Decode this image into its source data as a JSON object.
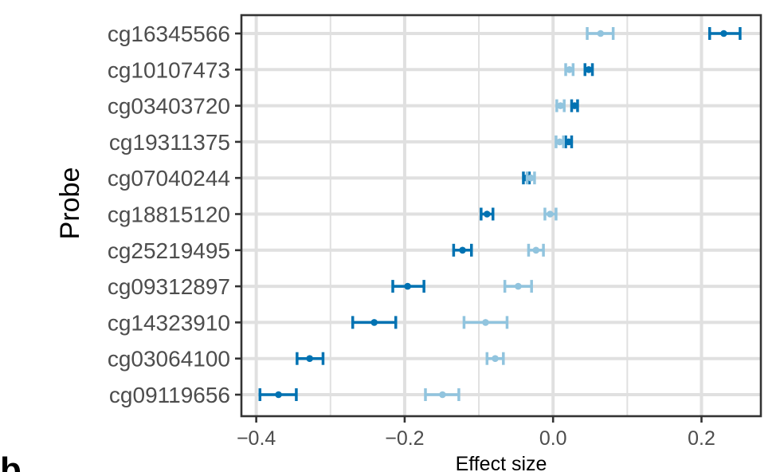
{
  "chart_data": {
    "type": "errorbar",
    "xlabel": "Effect size",
    "ylabel": "Probe",
    "xlim": [
      -0.42,
      0.28
    ],
    "x_ticks": [
      -0.4,
      -0.2,
      0.0,
      0.2
    ],
    "x_tick_labels": [
      "−0.4",
      "−0.2",
      "0.0",
      "0.2"
    ],
    "grid": true,
    "panel_letter": "b",
    "colors": {
      "dark": "#0072b2",
      "light": "#91c4de",
      "grid": "#e0e0e0",
      "frame": "#333333"
    },
    "categories": [
      "cg16345566",
      "cg10107473",
      "cg03403720",
      "cg19311375",
      "cg07040244",
      "cg18815120",
      "cg25219495",
      "cg09312897",
      "cg14323910",
      "cg03064100",
      "cg09119656"
    ],
    "series": [
      {
        "name": "dark",
        "color": "#0072b2",
        "values": [
          0.23,
          0.048,
          0.029,
          0.021,
          -0.036,
          -0.089,
          -0.122,
          -0.196,
          -0.241,
          -0.328,
          -0.37
        ],
        "lower": [
          0.211,
          0.043,
          0.025,
          0.017,
          -0.04,
          -0.097,
          -0.134,
          -0.216,
          -0.27,
          -0.345,
          -0.395
        ],
        "upper": [
          0.252,
          0.053,
          0.033,
          0.025,
          -0.032,
          -0.081,
          -0.11,
          -0.174,
          -0.212,
          -0.31,
          -0.346
        ]
      },
      {
        "name": "light",
        "color": "#91c4de",
        "values": [
          0.064,
          0.022,
          0.01,
          0.009,
          -0.03,
          -0.004,
          -0.023,
          -0.047,
          -0.091,
          -0.078,
          -0.149
        ],
        "lower": [
          0.046,
          0.017,
          0.005,
          0.004,
          -0.035,
          -0.011,
          -0.033,
          -0.065,
          -0.12,
          -0.089,
          -0.172
        ],
        "upper": [
          0.081,
          0.027,
          0.015,
          0.014,
          -0.025,
          0.004,
          -0.013,
          -0.029,
          -0.062,
          -0.067,
          -0.127
        ]
      }
    ]
  }
}
